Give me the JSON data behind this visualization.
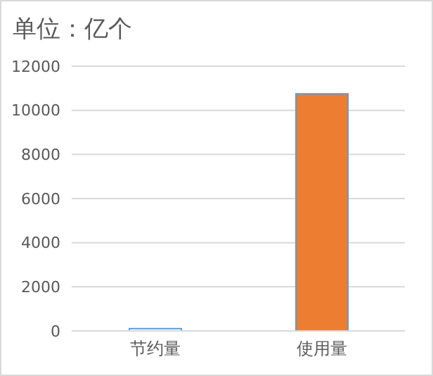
{
  "chart_data": {
    "type": "bar",
    "title": "单位：亿个",
    "categories": [
      "节约量",
      "使用量"
    ],
    "values": [
      100,
      10750
    ],
    "colors": [
      "#ffffff",
      "#ed7d31"
    ],
    "ylim": [
      0,
      12000
    ],
    "yticks": [
      0,
      2000,
      4000,
      6000,
      8000,
      10000,
      12000
    ],
    "grid": "y",
    "legend": false
  }
}
